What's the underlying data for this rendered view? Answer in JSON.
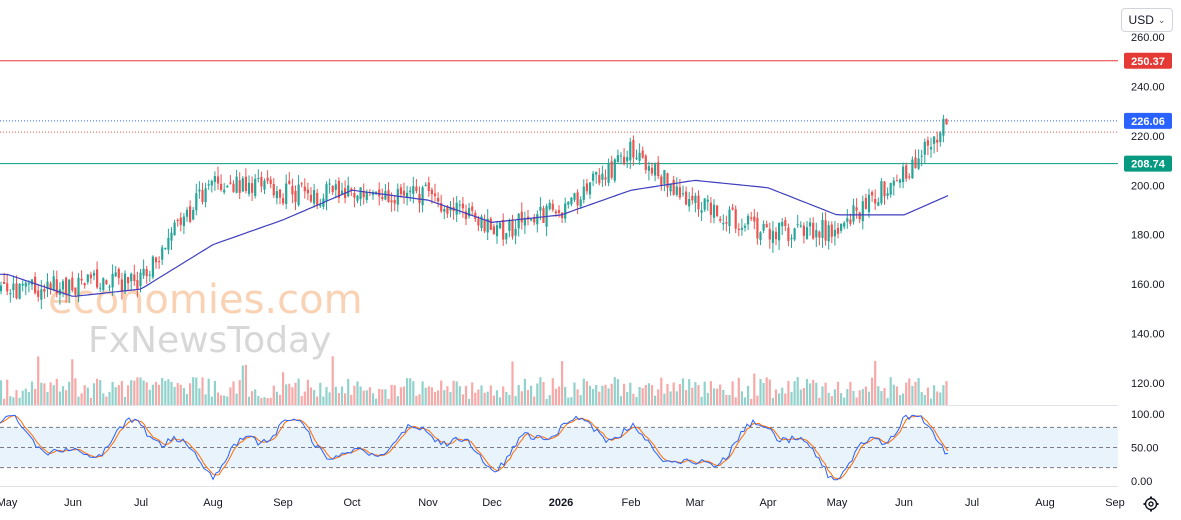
{
  "currency_selector": {
    "label": "USD",
    "chevron_icon": "chevron-down-icon"
  },
  "settings_icon": "gear-icon",
  "watermark": {
    "line1": "economies.com",
    "line2": "FxNewsToday"
  },
  "colors": {
    "up": "#26a69a",
    "down": "#ef5350",
    "ma": "#3f3fbf",
    "resistance": "#e53935",
    "support": "#089981",
    "last": "#2962ff",
    "k_line": "#2962ff",
    "d_line": "#ff6d00"
  },
  "chart_data": [
    {
      "type": "candlestick",
      "title": "",
      "x_labels": [
        "May",
        "Jun",
        "Jul",
        "Aug",
        "Sep",
        "Oct",
        "Nov",
        "Dec",
        "2026",
        "Feb",
        "Mar",
        "Apr",
        "May",
        "Jun",
        "Jul",
        "Aug",
        "Sep"
      ],
      "y_range": [
        112,
        265
      ],
      "y_ticks": [
        "260.00",
        "240.00",
        "220.00",
        "200.00",
        "180.00",
        "160.00",
        "140.00",
        "120.00"
      ],
      "grid": false,
      "price_lines": [
        {
          "label": "250.37",
          "value": 250.37,
          "style": "solid",
          "role": "resistance"
        },
        {
          "label": "226.06",
          "value": 226.06,
          "style": "dotted",
          "role": "last"
        },
        {
          "label": "208.74",
          "value": 208.74,
          "style": "solid",
          "role": "support"
        }
      ],
      "secondary_dotted_level": 221.5,
      "close_path": [
        [
          "May",
          158
        ],
        [
          "Jun",
          160
        ],
        [
          "Jul",
          161
        ],
        [
          "Aug",
          203
        ],
        [
          "Sep",
          197
        ],
        [
          "Oct",
          196
        ],
        [
          "Nov",
          196
        ],
        [
          "Dec",
          181
        ],
        [
          "2026",
          190
        ],
        [
          "Feb",
          214
        ],
        [
          "Mar",
          193
        ],
        [
          "Apr",
          181
        ],
        [
          "May",
          182
        ],
        [
          "Jun",
          205
        ],
        [
          "Jun",
          226
        ]
      ],
      "moving_average_path": [
        [
          "May",
          164
        ],
        [
          "Jun",
          155
        ],
        [
          "Jul",
          158
        ],
        [
          "Aug",
          176
        ],
        [
          "Sep",
          186
        ],
        [
          "Oct",
          198
        ],
        [
          "Nov",
          194
        ],
        [
          "Dec",
          185
        ],
        [
          "2026",
          188
        ],
        [
          "Feb",
          198
        ],
        [
          "Mar",
          202
        ],
        [
          "Apr",
          199
        ],
        [
          "May",
          188
        ],
        [
          "Jun",
          188
        ],
        [
          "Jun",
          196
        ]
      ],
      "volume": "relative bars, no scale"
    },
    {
      "type": "line",
      "name": "Stochastic",
      "y_range": [
        0,
        100
      ],
      "y_ticks": [
        "100.00",
        "50.00",
        "0.00"
      ],
      "band": [
        20,
        80
      ],
      "midline": 50,
      "k_path": [
        [
          "May",
          88
        ],
        [
          "Jun",
          30
        ],
        [
          "Jul",
          85
        ],
        [
          "Aug",
          20
        ],
        [
          "Sep",
          88
        ],
        [
          "Oct",
          30
        ],
        [
          "Nov",
          80
        ],
        [
          "Dec",
          25
        ],
        [
          "2026",
          85
        ],
        [
          "Feb",
          70
        ],
        [
          "Mar",
          15
        ],
        [
          "Apr",
          90
        ],
        [
          "May",
          10
        ],
        [
          "Jun",
          95
        ],
        [
          "Jun",
          55
        ]
      ]
    }
  ]
}
